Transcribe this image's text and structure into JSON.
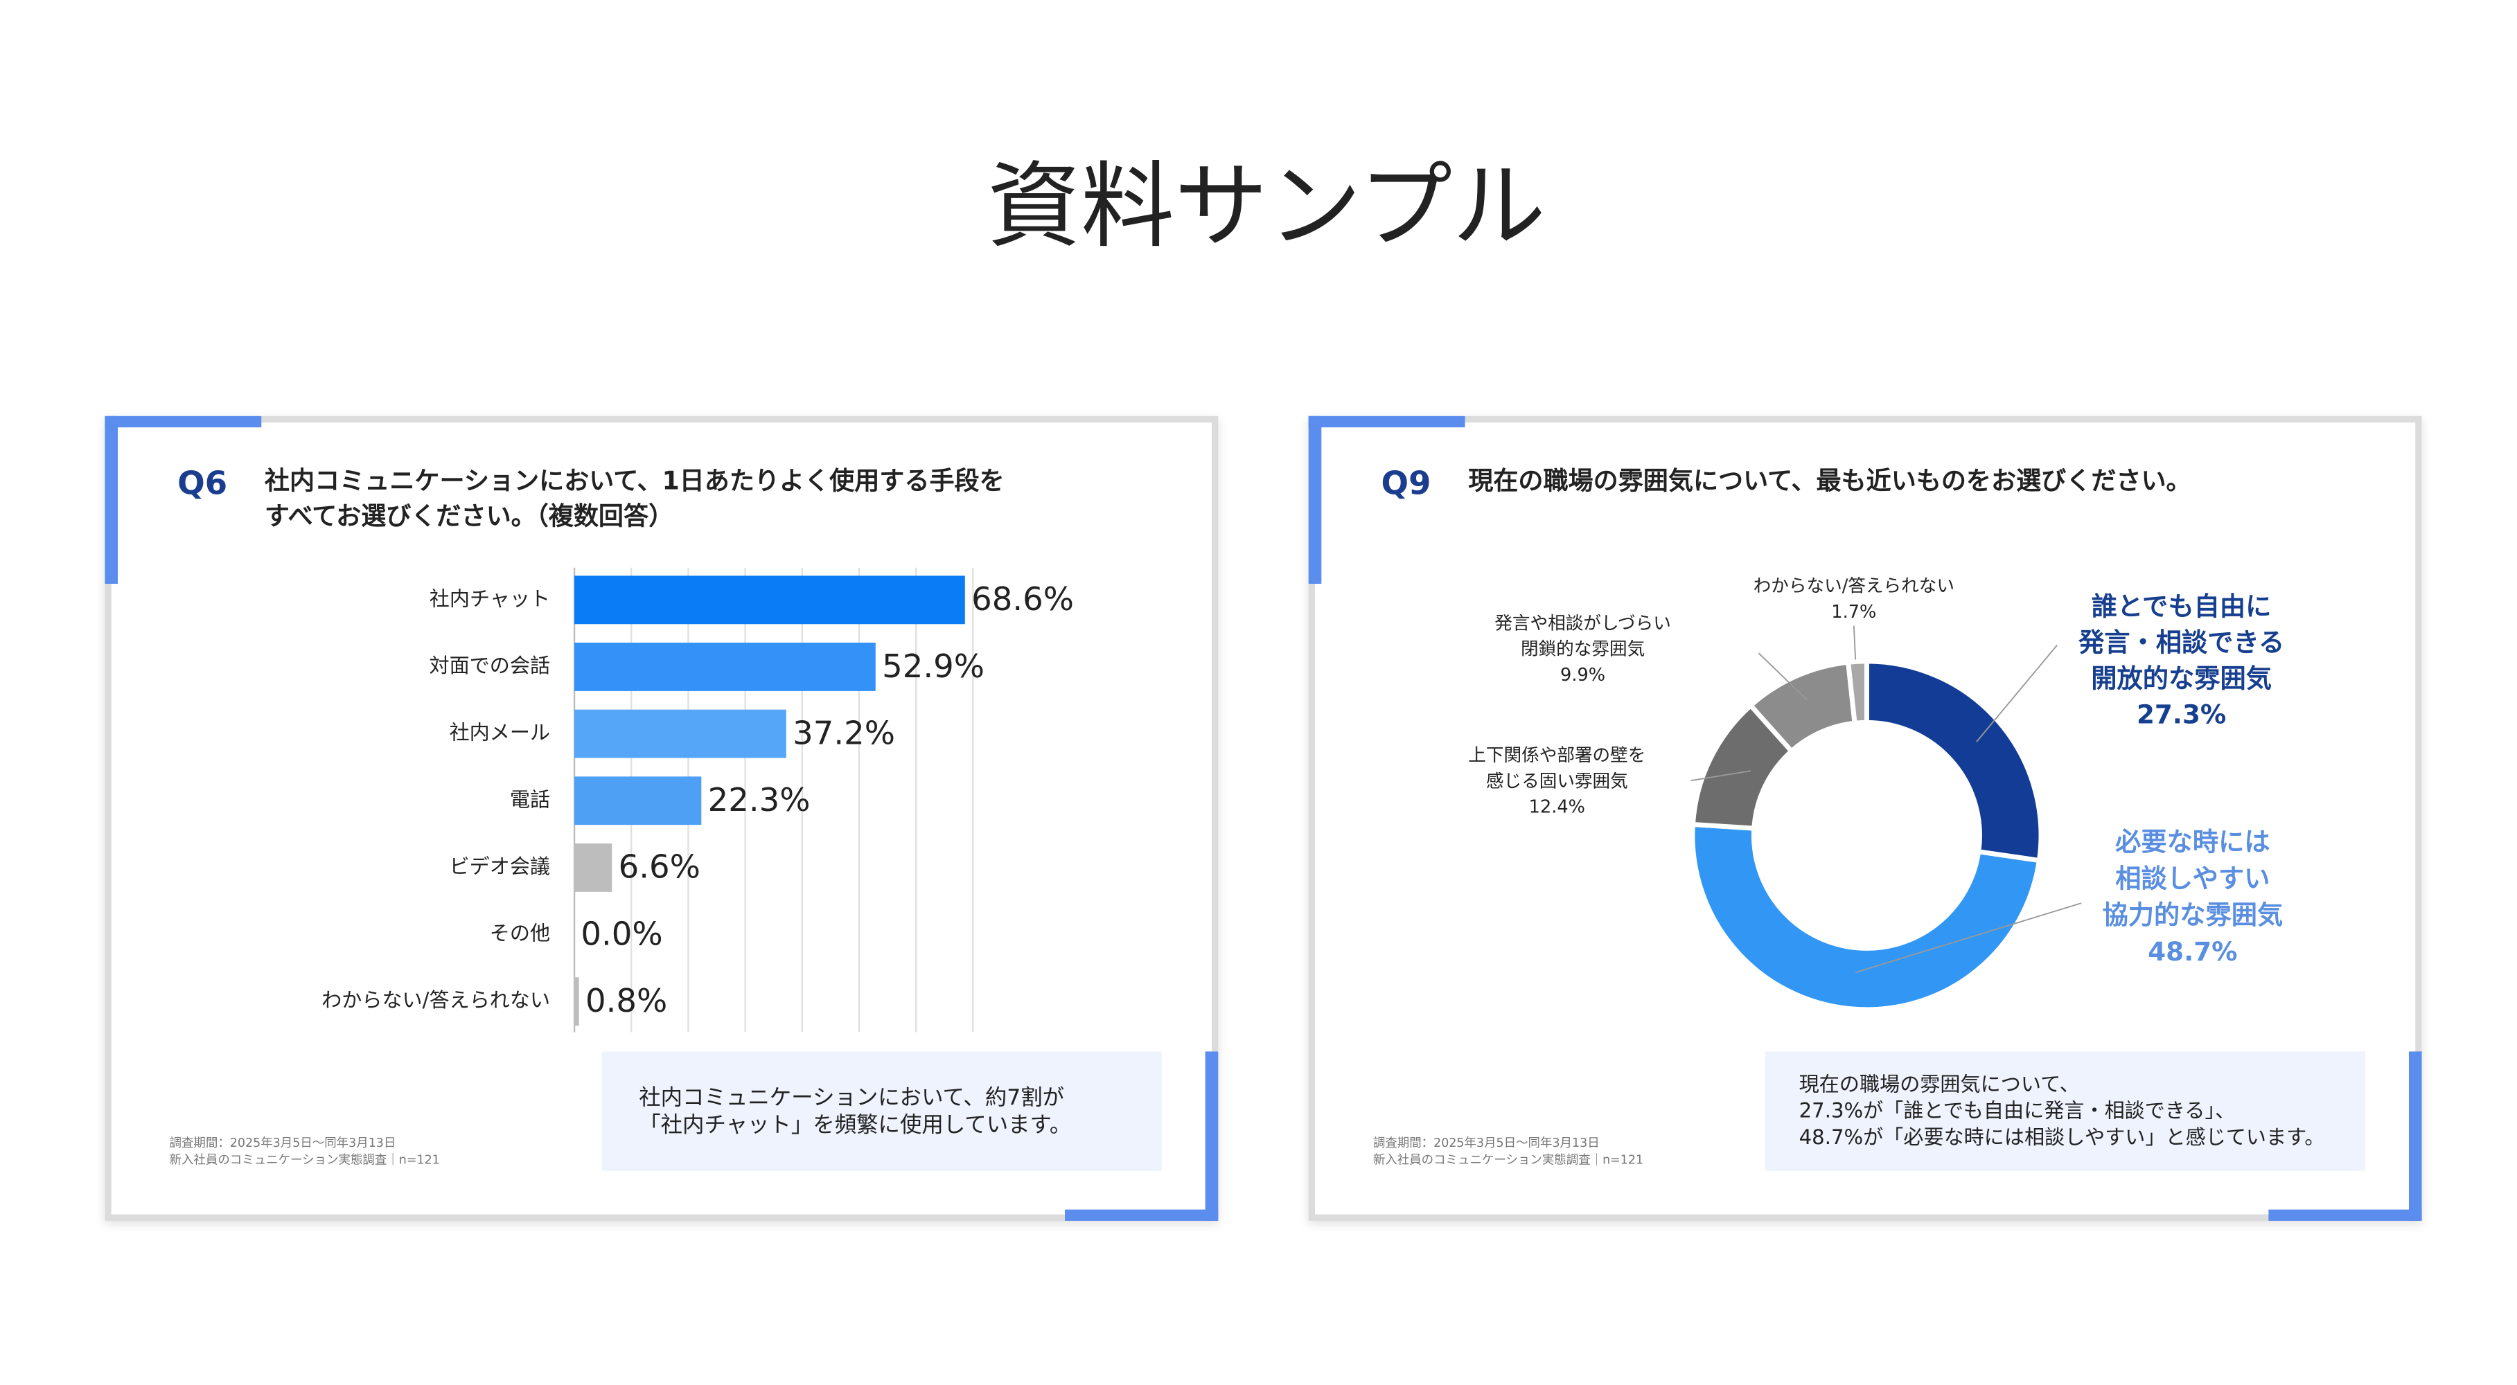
{
  "title": "資料サンプル",
  "chart_data": [
    {
      "type": "bar",
      "label": "Q6",
      "title": [
        "社内コミュニケーションにおいて、1日あたりよく使用する手段を",
        "すべてお選びください。（複数回答）"
      ],
      "categories": [
        "社内チャット",
        "対面での会話",
        "社内メール",
        "電話",
        "ビデオ会議",
        "その他",
        "わからない/答えられない"
      ],
      "values": [
        68.6,
        52.9,
        37.2,
        22.3,
        6.6,
        0.0,
        0.8
      ],
      "value_labels": [
        "68.6%",
        "52.9%",
        "37.2%",
        "22.3%",
        "6.6%",
        "0.0%",
        "0.8%"
      ],
      "colors": [
        "#0a7cf5",
        "#3391f7",
        "#55a5f9",
        "#4ea0f5",
        "#bdbdbd",
        "#bdbdbd",
        "#bdbdbd"
      ],
      "xlim": [
        0,
        70
      ],
      "xticks": [
        0,
        10,
        20,
        30,
        40,
        50,
        60,
        70
      ],
      "grid": true,
      "note": [
        "社内コミュニケーションにおいて、約7割が",
        "「社内チャット」を頻繁に使用しています。"
      ],
      "source": [
        "調査期間：2025年3月5日〜同年3月13日",
        "新入社員のコミュニケーション実態調査｜n=121"
      ]
    },
    {
      "type": "donut",
      "label": "Q9",
      "title": [
        "現在の職場の雰囲気について、最も近いものをお選びください。"
      ],
      "categories": [
        [
          "誰とでも自由に",
          "発言・相談できる",
          "開放的な雰囲気"
        ],
        [
          "必要な時には",
          "相談しやすい",
          "協力的な雰囲気"
        ],
        [
          "上下関係や部署の壁を",
          "感じる固い雰囲気"
        ],
        [
          "発言や相談がしづらい",
          "閉鎖的な雰囲気"
        ],
        [
          "わからない/答えられない"
        ]
      ],
      "values": [
        27.3,
        48.7,
        12.4,
        9.9,
        1.7
      ],
      "value_labels": [
        "27.3%",
        "48.7%",
        "12.4%",
        "9.9%",
        "1.7%"
      ],
      "colors": [
        "#123c96",
        "#3296f5",
        "#6d6d6d",
        "#8c8c8c",
        "#a8a8a8"
      ],
      "label_colors": [
        "#173f8f",
        "#5a8ee0",
        "#222222",
        "#222222",
        "#222222"
      ],
      "note": [
        "現在の職場の雰囲気について、",
        "27.3%が「誰とでも自由に発言・相談できる」、",
        "48.7%が「必要な時には相談しやすい」と感じています。"
      ],
      "source": [
        "調査期間：2025年3月5日〜同年3月13日",
        "新入社員のコミュニケーション実態調査｜n=121"
      ]
    }
  ]
}
